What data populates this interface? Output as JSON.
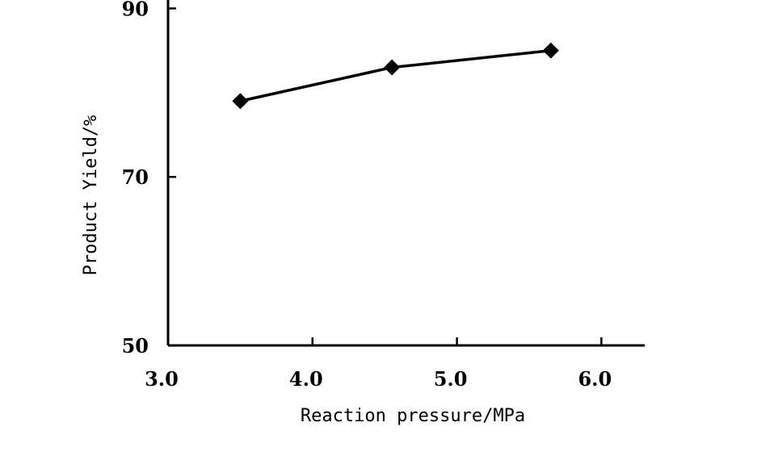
{
  "chart_data": {
    "type": "line",
    "title": "",
    "xlabel": "Reaction pressure/MPa",
    "ylabel": "Product Yield/%",
    "xlim": [
      3.0,
      6.3
    ],
    "ylim": [
      50,
      91
    ],
    "x_ticks": [
      3.0,
      4.0,
      5.0,
      6.0
    ],
    "x_tick_labels": [
      "3.0",
      "4.0",
      "5.0",
      "6.0"
    ],
    "y_ticks": [
      50,
      70,
      90
    ],
    "y_tick_labels": [
      "50",
      "70",
      "90"
    ],
    "grid": false,
    "legend": "none",
    "series": [
      {
        "marker": "diamond",
        "color": "#000000",
        "points": [
          {
            "x": 3.5,
            "y": 79.0
          },
          {
            "x": 4.55,
            "y": 83.0
          },
          {
            "x": 5.65,
            "y": 85.0
          }
        ]
      }
    ]
  }
}
